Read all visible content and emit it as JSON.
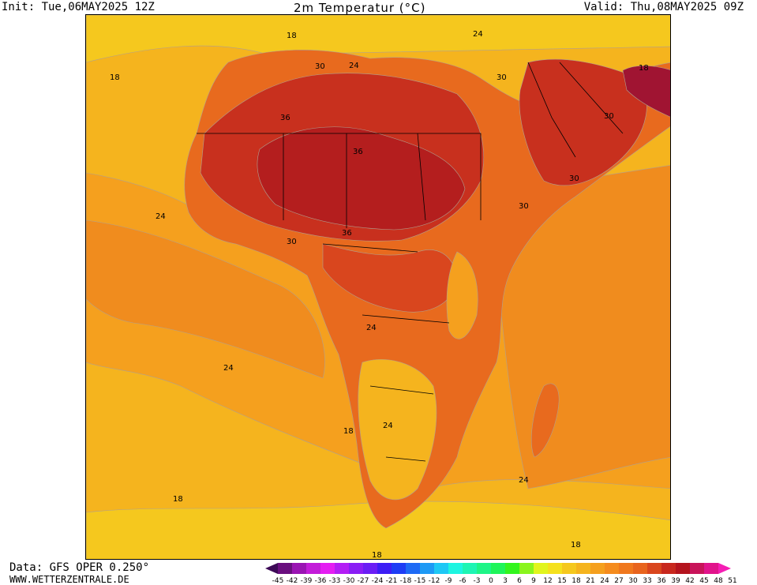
{
  "header": {
    "init": "Init: Tue,06MAY2025 12Z",
    "title": "2m Temperatur (°C)",
    "valid": "Valid: Thu,08MAY2025 09Z"
  },
  "footer": {
    "data_source": "Data: GFS OPER 0.250°",
    "website": "WWW.WETTERZENTRALE.DE"
  },
  "colorbar": {
    "labels": [
      "-45",
      "-42",
      "-39",
      "-36",
      "-33",
      "-30",
      "-27",
      "-24",
      "-21",
      "-18",
      "-15",
      "-12",
      "-9",
      "-6",
      "-3",
      "0",
      "3",
      "6",
      "9",
      "12",
      "15",
      "18",
      "21",
      "24",
      "27",
      "30",
      "33",
      "36",
      "39",
      "42",
      "45",
      "48",
      "51"
    ],
    "colors": [
      "#3d0a57",
      "#6a0f7f",
      "#9a14b3",
      "#c31cd9",
      "#e41ef2",
      "#b31ef5",
      "#8a1ef5",
      "#6a1ef5",
      "#3d1ef5",
      "#1e3df5",
      "#1e6af5",
      "#1e9af5",
      "#1ec8f5",
      "#1ef5e1",
      "#1ef5b4",
      "#1ef587",
      "#1ef55a",
      "#33f51e",
      "#8af51e",
      "#e1f51e",
      "#f5e11e",
      "#f5c81e",
      "#f5b41e",
      "#f5a01e",
      "#f58c1e",
      "#f0781e",
      "#e8641e",
      "#d9461e",
      "#c8281e",
      "#b4141e",
      "#c8145a",
      "#e1148c",
      "#f51eb4"
    ]
  },
  "contour_labels": [
    "18",
    "18",
    "24",
    "24",
    "24",
    "30",
    "36",
    "36",
    "36",
    "30",
    "30",
    "24",
    "24",
    "30",
    "18",
    "18",
    "24",
    "18",
    "18",
    "18",
    "30",
    "30",
    "24"
  ],
  "palette": {
    "t18": "#f5c81e",
    "t21": "#f5b41e",
    "t24": "#f5a01e",
    "t27": "#f08c1e",
    "t30": "#e86a1e",
    "t33": "#d9461e",
    "t36": "#c8301e",
    "t39": "#b41e1e",
    "t42": "#a01432",
    "border": "#000000",
    "contour": "#b0a090"
  },
  "chart_data": {
    "type": "heatmap",
    "title": "2m Temperatur (°C)",
    "unit": "°C",
    "levels": [
      -45,
      -42,
      -39,
      -36,
      -33,
      -30,
      -27,
      -24,
      -21,
      -18,
      -15,
      -12,
      -9,
      -6,
      -3,
      0,
      3,
      6,
      9,
      12,
      15,
      18,
      21,
      24,
      27,
      30,
      33,
      36,
      39,
      42,
      45,
      48,
      51
    ]
  }
}
